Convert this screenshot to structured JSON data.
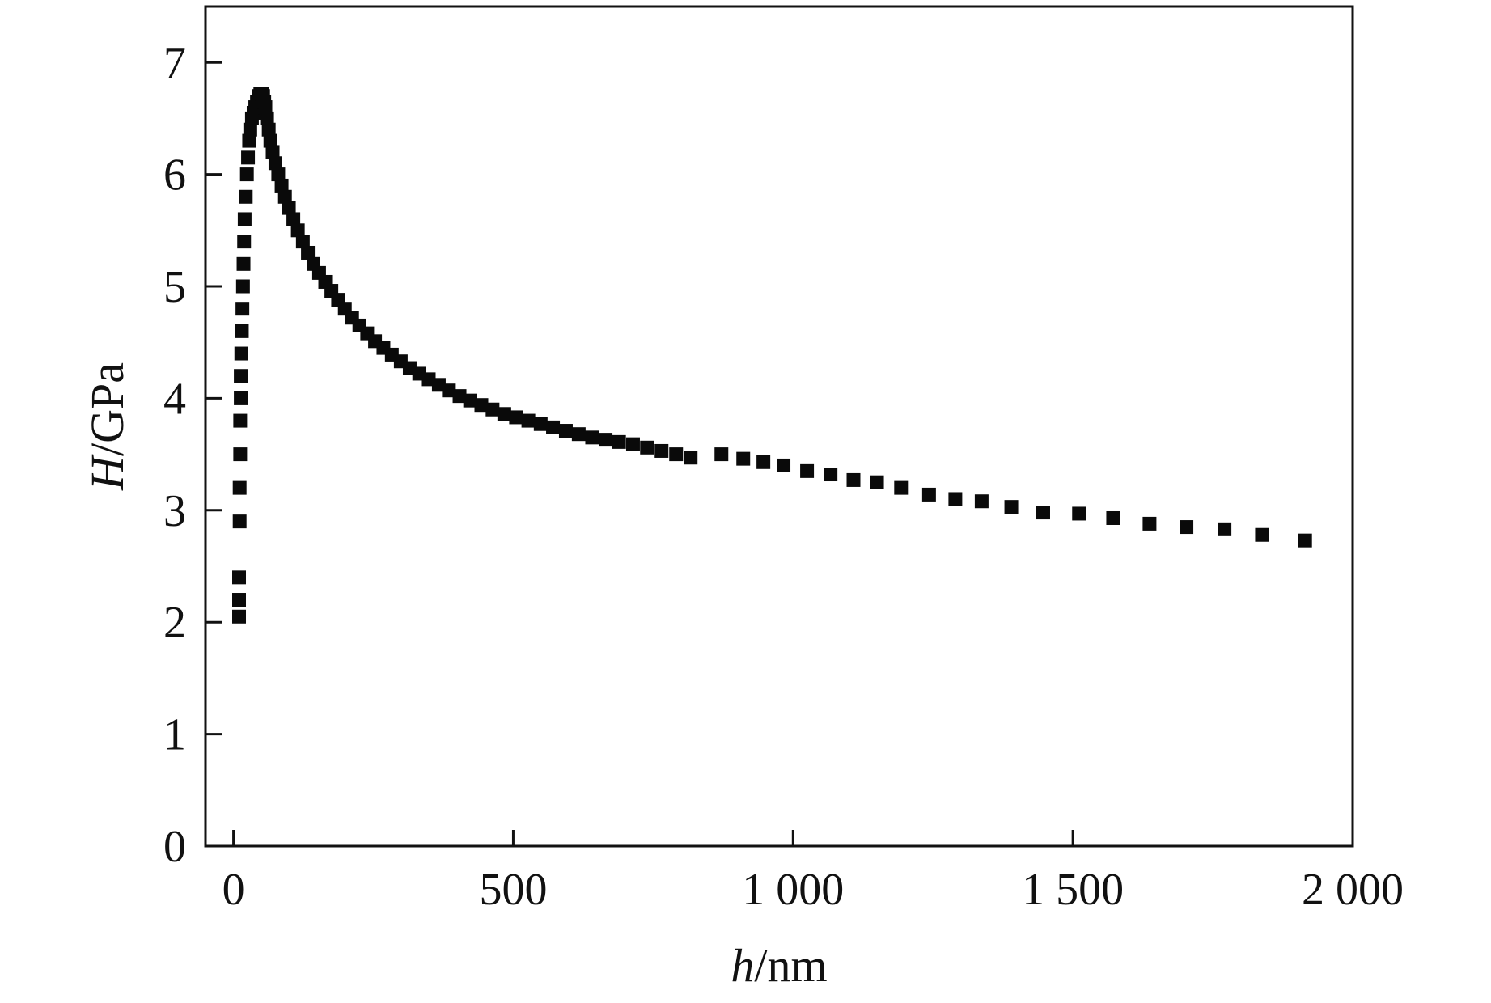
{
  "chart_data": {
    "type": "scatter",
    "xlabel_var": "h",
    "xlabel_unit": "/nm",
    "ylabel_var": "H",
    "ylabel_unit": "/GPa",
    "xlim": [
      -50,
      2000
    ],
    "ylim": [
      0,
      7.5
    ],
    "x_ticks": [
      {
        "value": 0,
        "label": "0"
      },
      {
        "value": 500,
        "label": "500"
      },
      {
        "value": 1000,
        "label": "1 000"
      },
      {
        "value": 1500,
        "label": "1 500"
      },
      {
        "value": 2000,
        "label": "2 000"
      }
    ],
    "y_ticks": [
      {
        "value": 0,
        "label": "0"
      },
      {
        "value": 1,
        "label": "1"
      },
      {
        "value": 2,
        "label": "2"
      },
      {
        "value": 3,
        "label": "3"
      },
      {
        "value": 4,
        "label": "4"
      },
      {
        "value": 5,
        "label": "5"
      },
      {
        "value": 6,
        "label": "6"
      },
      {
        "value": 7,
        "label": "7"
      }
    ],
    "marker": "square",
    "marker_color": "#0a0a0a",
    "grid": false,
    "series": [
      {
        "x": [
          10,
          10,
          10,
          11,
          11,
          12,
          12,
          13,
          13,
          14,
          15,
          16,
          17,
          18,
          19,
          20,
          22,
          24,
          26,
          28,
          30,
          33,
          36,
          39,
          42,
          45,
          48,
          51,
          53,
          55,
          57,
          60,
          63,
          66,
          70,
          75,
          80,
          86,
          92,
          99,
          107,
          115,
          124,
          133,
          143,
          153,
          164,
          175,
          187,
          199,
          212,
          225,
          239,
          253,
          268,
          283,
          299,
          315,
          332,
          349,
          367,
          385,
          404,
          423,
          443,
          463,
          484,
          505,
          527,
          549,
          571,
          594,
          617,
          641,
          665,
          689,
          714,
          739,
          765,
          791,
          817,
          872,
          911,
          947,
          983,
          1025,
          1067,
          1108,
          1150,
          1193,
          1243,
          1290,
          1337,
          1390,
          1447,
          1511,
          1572,
          1637,
          1703,
          1771,
          1838,
          1915
        ],
        "y": [
          2.05,
          2.2,
          2.4,
          2.9,
          3.2,
          3.5,
          3.8,
          4.0,
          4.2,
          4.4,
          4.6,
          4.8,
          5.0,
          5.2,
          5.4,
          5.6,
          5.8,
          6.0,
          6.15,
          6.3,
          6.4,
          6.5,
          6.55,
          6.6,
          6.65,
          6.7,
          6.72,
          6.72,
          6.7,
          6.65,
          6.6,
          6.5,
          6.4,
          6.3,
          6.2,
          6.1,
          6.0,
          5.9,
          5.8,
          5.7,
          5.6,
          5.5,
          5.4,
          5.3,
          5.2,
          5.12,
          5.04,
          4.96,
          4.88,
          4.8,
          4.72,
          4.65,
          4.58,
          4.51,
          4.45,
          4.39,
          4.33,
          4.27,
          4.22,
          4.17,
          4.12,
          4.07,
          4.02,
          3.98,
          3.94,
          3.9,
          3.86,
          3.83,
          3.8,
          3.77,
          3.74,
          3.71,
          3.68,
          3.65,
          3.63,
          3.61,
          3.59,
          3.56,
          3.53,
          3.5,
          3.47,
          3.5,
          3.46,
          3.43,
          3.4,
          3.35,
          3.32,
          3.27,
          3.25,
          3.2,
          3.14,
          3.1,
          3.08,
          3.03,
          2.98,
          2.97,
          2.93,
          2.88,
          2.85,
          2.83,
          2.78,
          2.73
        ]
      }
    ]
  }
}
